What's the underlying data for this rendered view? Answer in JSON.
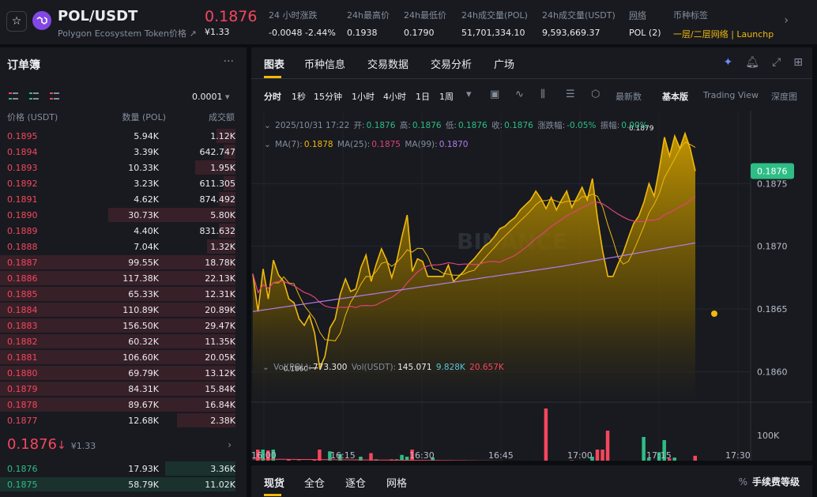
{
  "header": {
    "pair": "POL/USDT",
    "subtitle": "Polygon Ecosystem Token价格",
    "price": "0.1876",
    "price_cny": "¥1.33",
    "stats": [
      {
        "label": "24 小时涨跌",
        "value": "-0.0048 -2.44%",
        "color": "red"
      },
      {
        "label": "24h最高价",
        "value": "0.1938",
        "color": "white"
      },
      {
        "label": "24h最低价",
        "value": "0.1790",
        "color": "white"
      },
      {
        "label": "24h成交量(POL)",
        "value": "51,701,334.10",
        "color": "white"
      },
      {
        "label": "24h成交量(USDT)",
        "value": "9,593,669.37",
        "color": "white"
      },
      {
        "label": "网络",
        "value": "POL (2)",
        "color": "white"
      },
      {
        "label": "币种标签",
        "value": "一层/二层网络 | Launchp",
        "color": "yellow"
      }
    ]
  },
  "orderbook": {
    "title": "订单簿",
    "precision": "0.0001",
    "columns": [
      "价格 (USDT)",
      "数量 (POL)",
      "成交额"
    ],
    "asks": [
      {
        "price": "0.1895",
        "amount": "5.94K",
        "total": "1.12K",
        "depth": 0.08
      },
      {
        "price": "0.1894",
        "amount": "3.39K",
        "total": "642.747",
        "depth": 0.05
      },
      {
        "price": "0.1893",
        "amount": "10.33K",
        "total": "1.95K",
        "depth": 0.17
      },
      {
        "price": "0.1892",
        "amount": "3.23K",
        "total": "611.305",
        "depth": 0.05
      },
      {
        "price": "0.1891",
        "amount": "4.62K",
        "total": "874.492",
        "depth": 0.07
      },
      {
        "price": "0.1890",
        "amount": "30.73K",
        "total": "5.80K",
        "depth": 0.54
      },
      {
        "price": "0.1889",
        "amount": "4.40K",
        "total": "831.632",
        "depth": 0.07
      },
      {
        "price": "0.1888",
        "amount": "7.04K",
        "total": "1.32K",
        "depth": 0.12
      },
      {
        "price": "0.1887",
        "amount": "99.55K",
        "total": "18.78K",
        "depth": 1.0
      },
      {
        "price": "0.1886",
        "amount": "117.38K",
        "total": "22.13K",
        "depth": 1.0
      },
      {
        "price": "0.1885",
        "amount": "65.33K",
        "total": "12.31K",
        "depth": 1.0
      },
      {
        "price": "0.1884",
        "amount": "110.89K",
        "total": "20.89K",
        "depth": 1.0
      },
      {
        "price": "0.1883",
        "amount": "156.50K",
        "total": "29.47K",
        "depth": 1.0
      },
      {
        "price": "0.1882",
        "amount": "60.32K",
        "total": "11.35K",
        "depth": 1.0
      },
      {
        "price": "0.1881",
        "amount": "106.60K",
        "total": "20.05K",
        "depth": 1.0
      },
      {
        "price": "0.1880",
        "amount": "69.79K",
        "total": "13.12K",
        "depth": 1.0
      },
      {
        "price": "0.1879",
        "amount": "84.31K",
        "total": "15.84K",
        "depth": 1.0
      },
      {
        "price": "0.1878",
        "amount": "89.67K",
        "total": "16.84K",
        "depth": 1.0
      },
      {
        "price": "0.1877",
        "amount": "12.68K",
        "total": "2.38K",
        "depth": 0.25
      }
    ],
    "mid_price": "0.1876",
    "mid_arrow": "↓",
    "mid_cny": "¥1.33",
    "bids": [
      {
        "price": "0.1876",
        "amount": "17.93K",
        "total": "3.36K",
        "depth": 0.3
      },
      {
        "price": "0.1875",
        "amount": "58.79K",
        "total": "11.02K",
        "depth": 1.0
      }
    ]
  },
  "chart_panel": {
    "tabs": [
      "图表",
      "币种信息",
      "交易数据",
      "交易分析",
      "广场"
    ],
    "toolbar": {
      "intervals": [
        "分时",
        "1秒",
        "15分钟",
        "1小时",
        "4小时",
        "1日",
        "1周"
      ],
      "right_items": [
        "最新数",
        "基本版",
        "Trading View",
        "深度图"
      ]
    },
    "legend": {
      "ohlc_text": "2025/10/31 17:22",
      "open_label": "开:",
      "open": "0.1876",
      "high_label": "高:",
      "high": "0.1876",
      "low_label": "低:",
      "low": "0.1876",
      "close_label": "收:",
      "close": "0.1876",
      "chg_label": "涨跌幅:",
      "chg": "-0.05%",
      "amp_label": "振幅:",
      "amp": "0.00%",
      "ma7_label": "MA(7):",
      "ma7": "0.1878",
      "ma25_label": "MA(25):",
      "ma25": "0.1875",
      "ma99_label": "MA(99):",
      "ma99": "0.1870",
      "vol_pol_label": "Vol(POL):",
      "vol_pol": "773.300",
      "vol_usdt_label": "Vol(USDT):",
      "vol_usdt": "145.071",
      "vol_ma1": "9.828K",
      "vol_ma2": "20.657K"
    }
  },
  "chart_data": {
    "type": "area",
    "x_ticks": [
      "16:00",
      "16:15",
      "16:30",
      "16:45",
      "17:00",
      "17:15",
      "17:30"
    ],
    "y_ticks": [
      "0.1875",
      "0.1870",
      "0.1865",
      "0.1860"
    ],
    "ylim": [
      0.18577,
      0.18805
    ],
    "xlim": [
      0,
      92
    ],
    "current_price_label": "0.1876",
    "high_marker": "0.1879",
    "low_marker": "0.1860",
    "price": [
      0.18678,
      0.18648,
      0.18682,
      0.18658,
      0.18689,
      0.18677,
      0.18672,
      0.18658,
      0.18655,
      0.18642,
      0.18637,
      0.18645,
      0.18631,
      0.18603,
      0.18612,
      0.18635,
      0.18642,
      0.18662,
      0.18674,
      0.18664,
      0.18666,
      0.18683,
      0.18693,
      0.18672,
      0.18686,
      0.18698,
      0.18689,
      0.18675,
      0.18689,
      0.18708,
      0.18725,
      0.1868,
      0.1869,
      0.18688,
      0.18676,
      0.18676,
      0.18676,
      0.18676,
      0.18685,
      0.18672,
      0.18676,
      0.1868,
      0.18686,
      0.1869,
      0.18695,
      0.187,
      0.18703,
      0.18708,
      0.18714,
      0.18716,
      0.1872,
      0.18723,
      0.18729,
      0.18733,
      0.18737,
      0.18744,
      0.18738,
      0.1873,
      0.18739,
      0.18729,
      0.18737,
      0.18744,
      0.18731,
      0.18739,
      0.18747,
      0.18737,
      0.18754,
      0.18722,
      0.18696,
      0.18676,
      0.18676,
      0.18686,
      0.18695,
      0.18707,
      0.18718,
      0.18724,
      0.18735,
      0.1875,
      0.1874,
      0.18762,
      0.18787,
      0.18772,
      0.18788,
      0.18778,
      0.1879,
      0.18778,
      0.1876
    ],
    "volume_y_tick": "100K"
  },
  "bottom_panel": {
    "tabs": [
      "现货",
      "全仓",
      "逐仓",
      "网格"
    ],
    "fee": "手续费等级"
  }
}
